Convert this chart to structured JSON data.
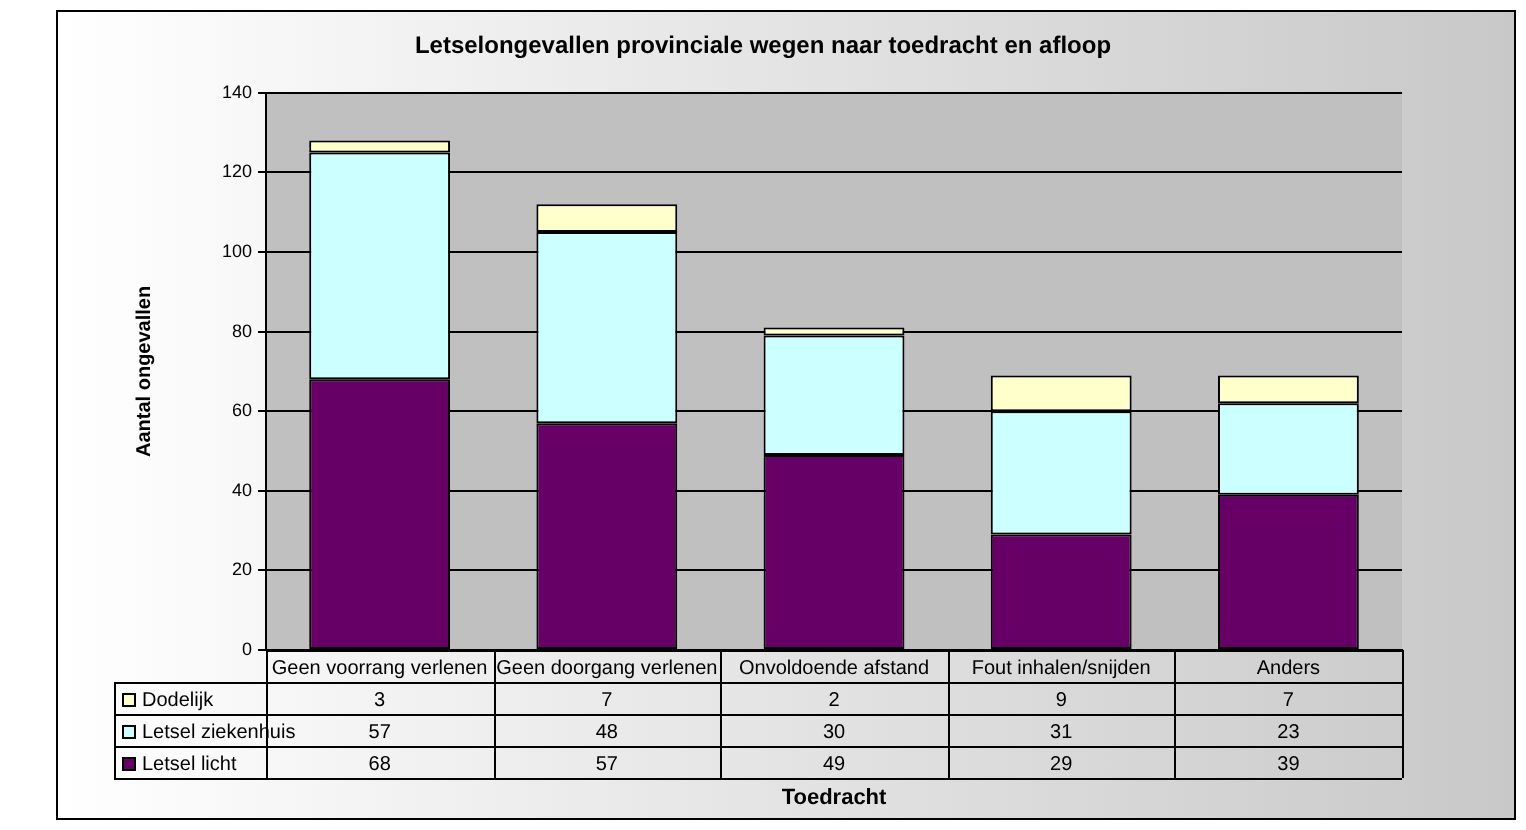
{
  "chart_data": {
    "type": "bar",
    "title": "Letselongevallen provinciale wegen naar toedracht en afloop",
    "xlabel": "Toedracht",
    "ylabel": "Aantal ongevallen",
    "categories": [
      "Geen voorrang verlenen",
      "Geen doorgang verlenen",
      "Onvoldoende afstand",
      "Fout inhalen/snijden",
      "Anders"
    ],
    "series": [
      {
        "name": "Letsel licht",
        "color": "#660066",
        "values": [
          68,
          57,
          49,
          29,
          39
        ]
      },
      {
        "name": "Letsel ziekenhuis",
        "color": "#ccffff",
        "values": [
          57,
          48,
          30,
          31,
          23
        ]
      },
      {
        "name": "Dodelijk",
        "color": "#ffffcc",
        "values": [
          3,
          7,
          2,
          9,
          7
        ]
      }
    ],
    "stacked": true,
    "ylim": [
      0,
      140
    ],
    "yticks": [
      0,
      20,
      40,
      60,
      80,
      100,
      120,
      140
    ],
    "grid": "y",
    "data_labels": true,
    "legend": "bottom left"
  }
}
